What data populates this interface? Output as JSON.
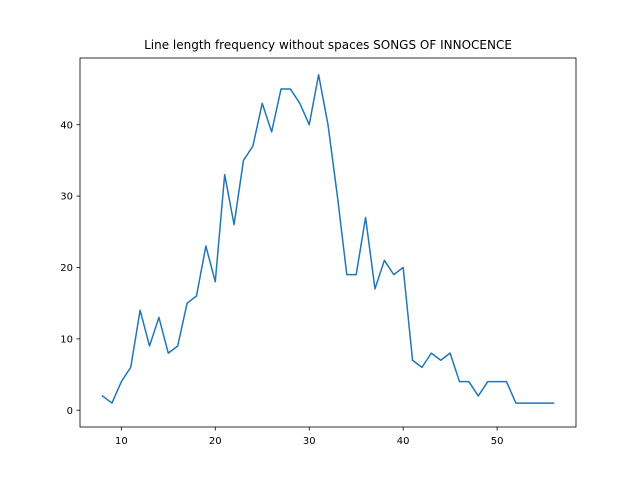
{
  "chart_data": {
    "type": "line",
    "title": "Line length frequency without spaces SONGS OF INNOCENCE",
    "xlabel": "",
    "ylabel": "",
    "xlim": [
      5.6,
      58.4
    ],
    "ylim": [
      -2.35,
      49.35
    ],
    "xticks": [
      10,
      20,
      30,
      40,
      50
    ],
    "yticks": [
      0,
      10,
      20,
      30,
      40
    ],
    "grid": false,
    "series_color": "#1f77b4",
    "x": [
      8,
      9,
      10,
      11,
      12,
      13,
      14,
      15,
      16,
      17,
      18,
      19,
      20,
      21,
      22,
      23,
      24,
      25,
      26,
      27,
      28,
      29,
      30,
      31,
      32,
      33,
      34,
      35,
      36,
      37,
      38,
      39,
      40,
      41,
      42,
      43,
      44,
      45,
      46,
      47,
      48,
      49,
      50,
      51,
      52,
      53,
      54,
      55,
      56
    ],
    "values": [
      2,
      1,
      4,
      6,
      14,
      9,
      13,
      8,
      9,
      15,
      16,
      23,
      18,
      33,
      26,
      35,
      37,
      43,
      39,
      45,
      45,
      43,
      40,
      47,
      40,
      30,
      19,
      19,
      27,
      17,
      21,
      19,
      20,
      7,
      6,
      8,
      7,
      8,
      4,
      4,
      2,
      4,
      4,
      4,
      1,
      1,
      1,
      1,
      1
    ]
  }
}
